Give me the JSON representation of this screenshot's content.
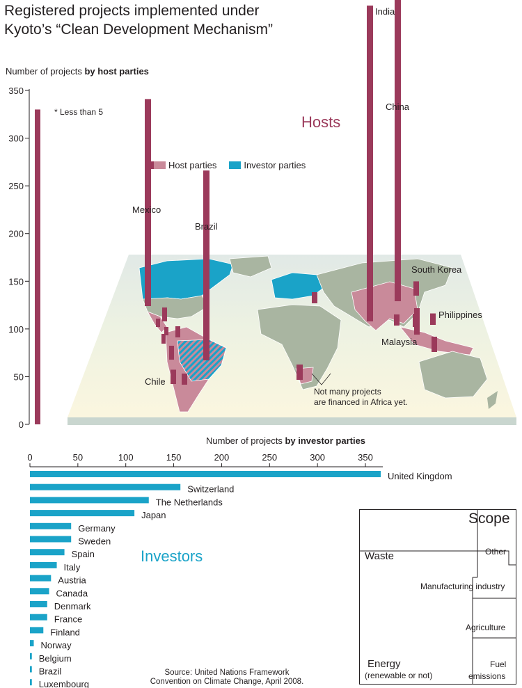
{
  "title": "Registered projects implemented under Kyoto’s “Clean Development Mechanism”",
  "host_axis_title_prefix": "Number of projects ",
  "host_axis_title_bold": "by host parties",
  "investor_axis_title_prefix": "Number of projects ",
  "investor_axis_title_bold": "by investor parties",
  "hosts_word": "Hosts",
  "investors_word": "Investors",
  "footnote": "* Less than 5",
  "legend": {
    "host": "Host parties",
    "investor": "Investor parties"
  },
  "africa_note_line1": "Not many projects",
  "africa_note_line2": "are financed in Africa yet.",
  "source_line1": "Source: United Nations Framework",
  "source_line2": "Convention on Climate Change, April 2008.",
  "scope": {
    "title": "Scope",
    "waste": "Waste",
    "other": "Other",
    "manufacturing": "Manufacturing industry",
    "agriculture": "Agriculture",
    "energy": "Energy",
    "energy_sub": "(renewable or not)",
    "fuel": "Fuel",
    "fuel_sub": "emissions"
  },
  "colors": {
    "host": "#9b3a5b",
    "host_light": "#c98a9a",
    "investor": "#1aa3c8",
    "land": "#a9b5a1",
    "sea_top": "#dfe8e6",
    "sea_bottom": "#f7f2dc"
  },
  "chart_data": [
    {
      "type": "bar",
      "title": "Number of projects by host parties",
      "ylim": [
        0,
        350
      ],
      "yticks": [
        0,
        50,
        100,
        150,
        200,
        250,
        300,
        350
      ],
      "categories": [
        "India",
        "China",
        "Mexico",
        "Brazil",
        "South Korea",
        "Philippines",
        "Malaysia",
        "Chile"
      ],
      "values": [
        350,
        324,
        217,
        199,
        15,
        12,
        14,
        15
      ],
      "reference_bar_value": 330
    },
    {
      "type": "bar",
      "orientation": "horizontal",
      "title": "Number of projects by investor parties",
      "xlim": [
        0,
        350
      ],
      "xticks": [
        0,
        50,
        100,
        150,
        200,
        250,
        300,
        350
      ],
      "categories": [
        "United Kingdom",
        "Switzerland",
        "The Netherlands",
        "Japan",
        "Germany",
        "Sweden",
        "Spain",
        "Italy",
        "Austria",
        "Canada",
        "Denmark",
        "France",
        "Finland",
        "Norway",
        "Belgium",
        "Brazil",
        "Luxembourg"
      ],
      "values": [
        366,
        157,
        124,
        109,
        43,
        43,
        36,
        28,
        22,
        20,
        18,
        18,
        14,
        4,
        2,
        2,
        2
      ]
    }
  ]
}
